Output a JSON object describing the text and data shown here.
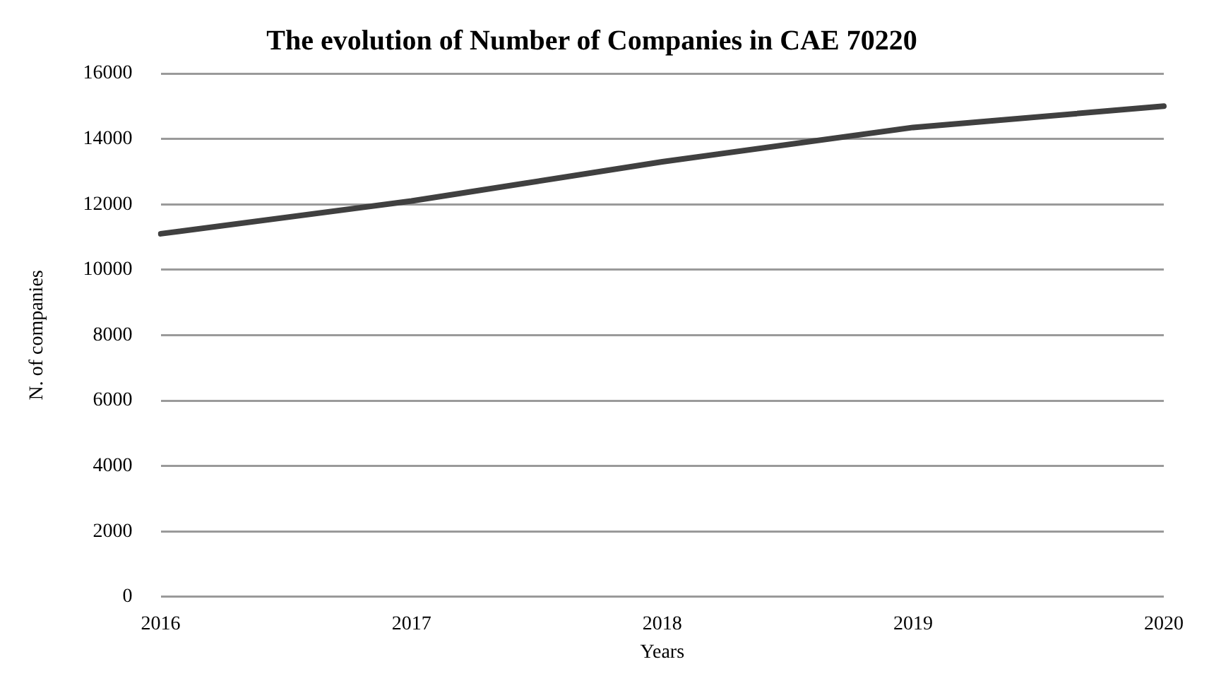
{
  "chart_data": {
    "type": "line",
    "title": "The evolution of Number of Companies in CAE 70220",
    "xlabel": "Years",
    "ylabel": "N. of companies",
    "categories": [
      "2016",
      "2017",
      "2018",
      "2019",
      "2020"
    ],
    "series": [
      {
        "color": "#404040",
        "values": [
          11100,
          12100,
          13300,
          14350,
          15000
        ]
      }
    ],
    "ylim": [
      0,
      16000
    ],
    "yticks": [
      0,
      2000,
      4000,
      6000,
      8000,
      10000,
      12000,
      14000,
      16000
    ],
    "grid": "y",
    "legend": false,
    "marker": "none",
    "line_style": "solid"
  }
}
